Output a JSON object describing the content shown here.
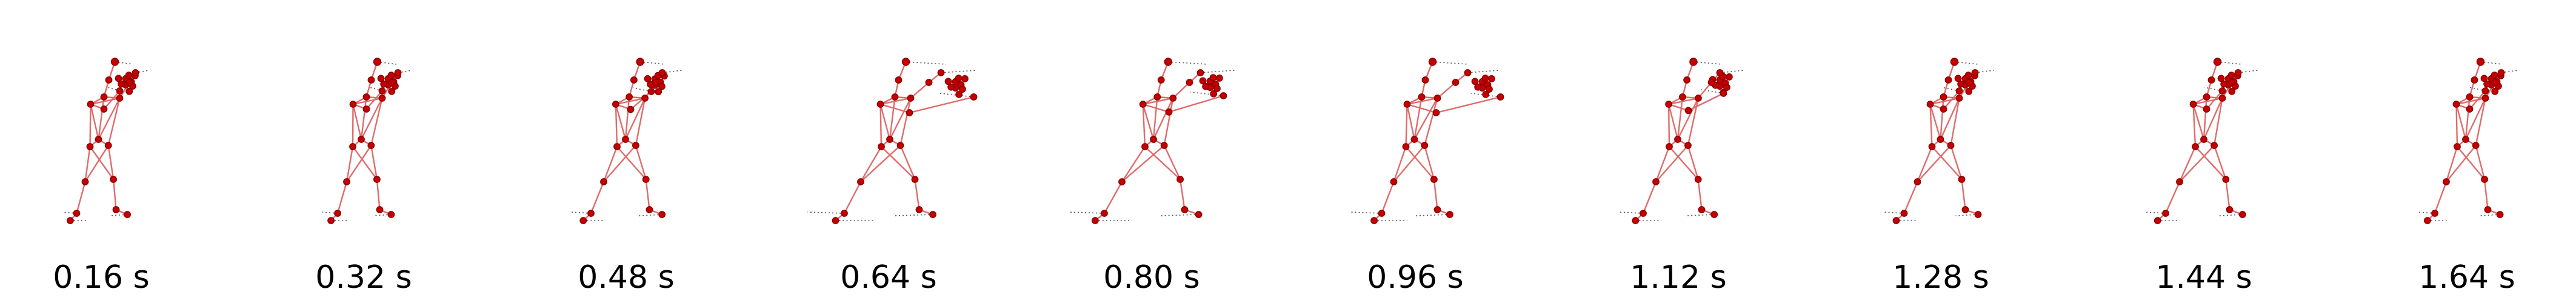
{
  "colors": {
    "skeleton_line": "#e06b6b",
    "joint_fill": "#c40000",
    "joint_stroke": "#8a0000",
    "motion_trace": "#555555",
    "label_text": "#000000",
    "background": "#ffffff"
  },
  "frames": [
    {
      "time_label": "0.16 s",
      "pose": "guard",
      "arm_extension": 0.0,
      "stance": 0.1
    },
    {
      "time_label": "0.32 s",
      "pose": "guard",
      "arm_extension": 0.0,
      "stance": 0.15
    },
    {
      "time_label": "0.48 s",
      "pose": "step",
      "arm_extension": 0.1,
      "stance": 0.45
    },
    {
      "time_label": "0.64 s",
      "pose": "punch",
      "arm_extension": 1.0,
      "stance": 0.75
    },
    {
      "time_label": "0.80 s",
      "pose": "punch",
      "arm_extension": 0.8,
      "stance": 0.85
    },
    {
      "time_label": "0.96 s",
      "pose": "punch",
      "arm_extension": 1.0,
      "stance": 0.4
    },
    {
      "time_label": "1.12 s",
      "pose": "retract",
      "arm_extension": 0.4,
      "stance": 0.45
    },
    {
      "time_label": "1.28 s",
      "pose": "guard",
      "arm_extension": 0.0,
      "stance": 0.5
    },
    {
      "time_label": "1.44 s",
      "pose": "guard",
      "arm_extension": 0.0,
      "stance": 0.55
    },
    {
      "time_label": "1.64 s",
      "pose": "guard",
      "arm_extension": 0.0,
      "stance": 0.35
    }
  ]
}
